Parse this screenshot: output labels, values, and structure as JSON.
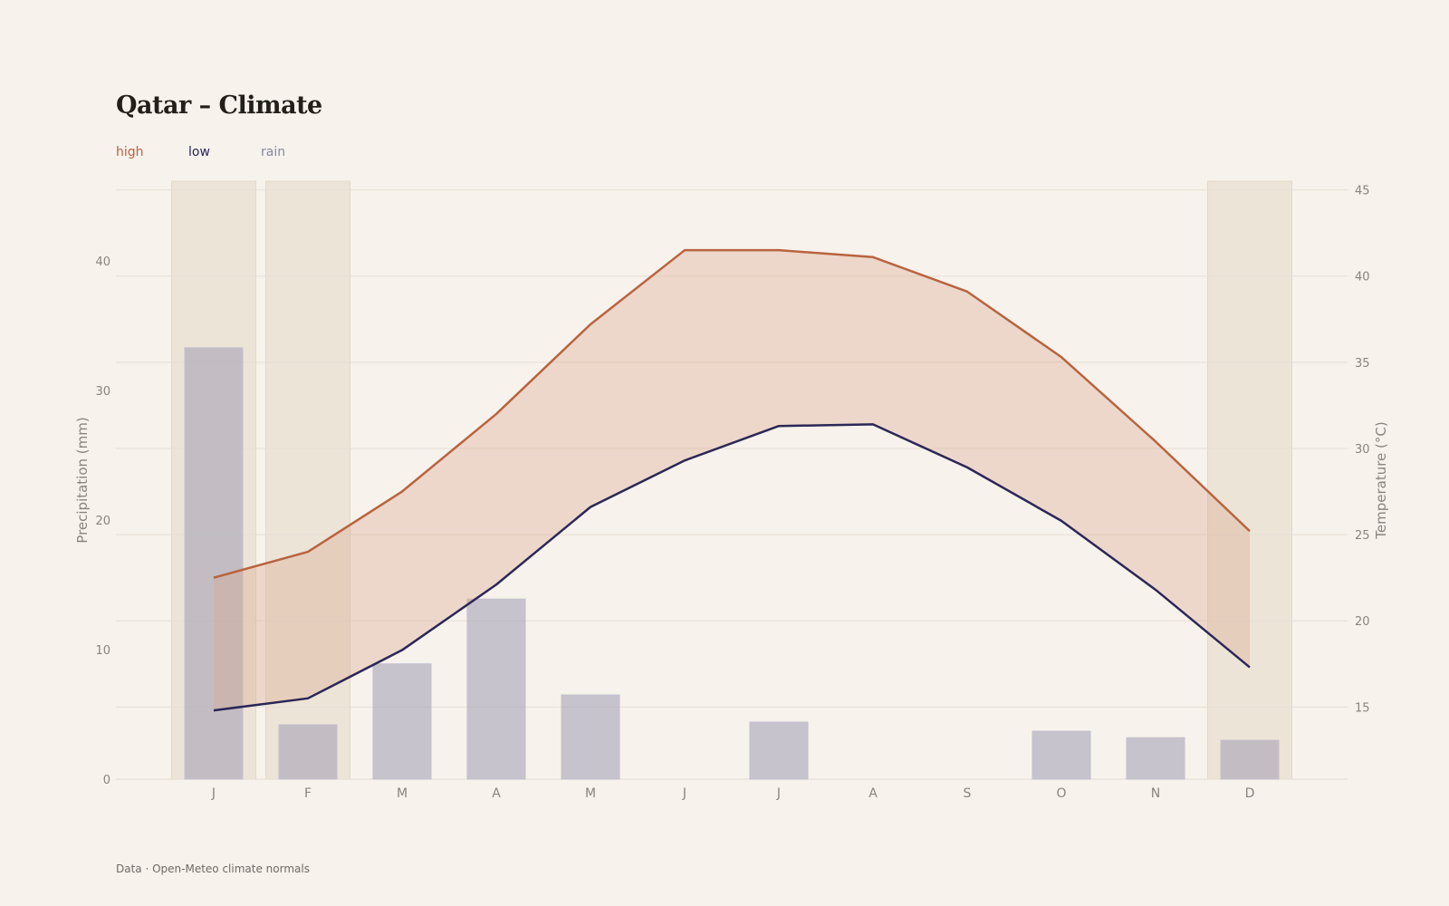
{
  "header": {
    "title": "Qatar – Climate"
  },
  "legend": {
    "high": {
      "label": "high",
      "color": "#b8643f"
    },
    "low": {
      "label": "low",
      "color": "#2b2757"
    },
    "rain": {
      "label": "rain",
      "color": "#8a86a2"
    }
  },
  "footer": {
    "source": "Data · Open-Meteo climate normals"
  },
  "chart_data": {
    "type": "line",
    "title": "Qatar – Climate",
    "categories": [
      "J",
      "F",
      "M",
      "A",
      "M",
      "J",
      "J",
      "A",
      "S",
      "O",
      "N",
      "D"
    ],
    "series": [
      {
        "name": "high",
        "axis": "right",
        "type": "line",
        "values": [
          22.5,
          24.0,
          27.5,
          32.0,
          37.2,
          41.5,
          41.5,
          41.1,
          39.1,
          35.3,
          30.4,
          25.2
        ]
      },
      {
        "name": "low",
        "axis": "right",
        "type": "line",
        "values": [
          14.8,
          15.5,
          18.3,
          22.1,
          26.6,
          29.3,
          31.3,
          31.4,
          28.9,
          25.8,
          21.8,
          17.3
        ]
      },
      {
        "name": "rain",
        "axis": "left",
        "type": "bar",
        "values": [
          33.3,
          4.2,
          8.9,
          13.9,
          6.5,
          0,
          4.4,
          0,
          0,
          3.7,
          3.2,
          3.0
        ]
      }
    ],
    "highlighted_months": [
      "J",
      "F",
      "D"
    ],
    "left_axis": {
      "label": "Precipitation (mm)",
      "ticks": [
        0,
        10,
        20,
        30,
        40
      ],
      "range": [
        0,
        40
      ]
    },
    "right_axis": {
      "label": "Temperature (°C)",
      "ticks": [
        15,
        20,
        25,
        30,
        35,
        40,
        45
      ],
      "range": [
        15,
        45
      ]
    },
    "grid": true,
    "legend_position": "top-left"
  }
}
